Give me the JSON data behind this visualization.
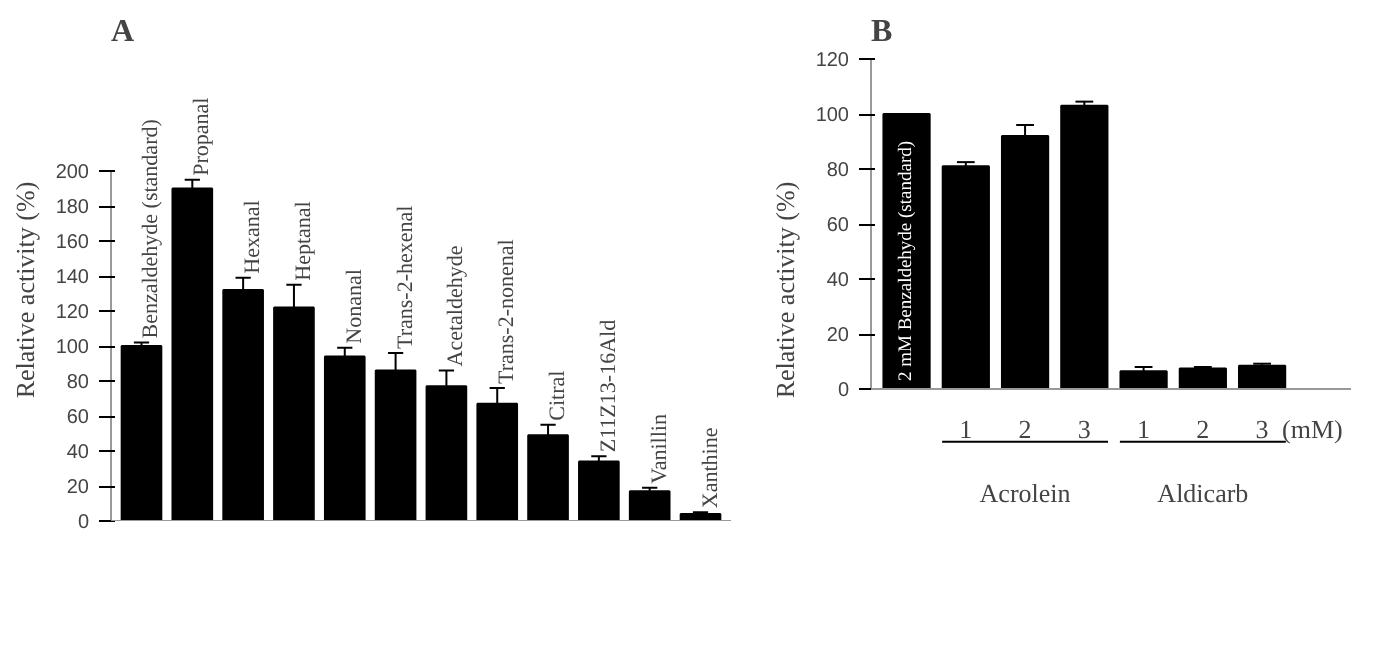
{
  "chart_data": [
    {
      "type": "bar",
      "title": "A",
      "ylabel": "Relative activity (%)",
      "categories": [
        "Benzaldehyde (standard)",
        "Propanal",
        "Hexanal",
        "Heptanal",
        "Nonanal",
        "Trans-2-hexenal",
        "Acetaldehyde",
        "Trans-2-nonenal",
        "Citral",
        "Z11Z13-16Ald",
        "Vanillin",
        "Xanthine"
      ],
      "values": [
        100,
        190,
        132,
        122,
        94,
        86,
        77,
        67,
        49,
        34,
        17,
        4
      ],
      "errors": [
        2,
        5,
        7,
        13,
        5,
        10,
        9,
        9,
        6,
        3,
        2,
        1
      ],
      "color": "#000000",
      "ylim": [
        0,
        200
      ],
      "yticks": [
        0,
        20,
        40,
        60,
        80,
        100,
        120,
        140,
        160,
        180,
        200
      ],
      "grid": false
    },
    {
      "type": "bar",
      "title": "B",
      "ylabel": "Relative activity (%)",
      "categories": [
        "2 mM Benzaldehyde (standard)",
        "1",
        "2",
        "3",
        "1",
        "2",
        "3"
      ],
      "values": [
        100,
        81,
        92,
        103,
        6.5,
        7.5,
        8.5
      ],
      "errors": [
        null,
        1.5,
        4,
        1.5,
        1.5,
        0.5,
        0.7
      ],
      "color": "#000000",
      "ylim": [
        0,
        120
      ],
      "yticks": [
        0,
        20,
        40,
        60,
        80,
        100,
        120
      ],
      "grid": false,
      "annotations": [
        "Acrolein",
        "Aldicarb",
        "(mM)"
      ]
    }
  ]
}
